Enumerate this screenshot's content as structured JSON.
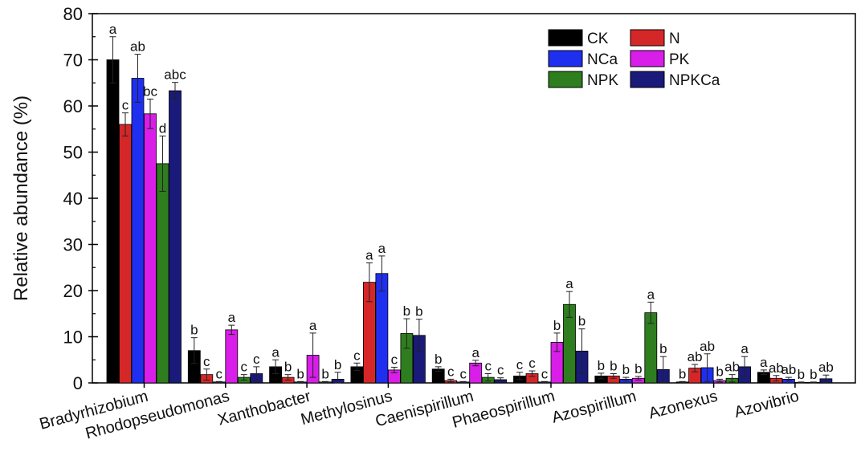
{
  "chart_data": {
    "type": "bar",
    "title": "",
    "xlabel": "",
    "ylabel": "Relative abundance (%)",
    "ylim": [
      0,
      80
    ],
    "yticks": [
      "0",
      "10",
      "20",
      "30",
      "40",
      "50",
      "60",
      "70",
      "80"
    ],
    "grid": false,
    "legend_position": "top-right",
    "categories": [
      "Bradyrhizobium",
      "Rhodopseudomonas",
      "Xanthobacter",
      "Methylosinus",
      "Caenispirillum",
      "Phaeospirillum",
      "Azospirillum",
      "Azonexus",
      "Azovibrio"
    ],
    "series": [
      {
        "name": "CK",
        "color": "#000000",
        "values": [
          70.0,
          7.0,
          3.5,
          3.5,
          3.0,
          1.5,
          1.5,
          0.2,
          2.3
        ],
        "errors": [
          5.0,
          2.8,
          1.5,
          0.8,
          0.5,
          0.8,
          0.6,
          0.1,
          0.5
        ],
        "labels": [
          "a",
          "b",
          "a",
          "c",
          "b",
          "c",
          "b",
          "b",
          "a"
        ]
      },
      {
        "name": "N",
        "color": "#d62728",
        "values": [
          56.0,
          1.8,
          1.2,
          21.8,
          0.5,
          2.0,
          1.5,
          3.2,
          1.0
        ],
        "errors": [
          2.5,
          1.2,
          0.6,
          4.2,
          0.3,
          0.6,
          0.5,
          0.8,
          0.6
        ],
        "labels": [
          "c",
          "c",
          "b",
          "a",
          "c",
          "c",
          "b",
          "ab",
          "ab"
        ]
      },
      {
        "name": "NCa",
        "color": "#1f2ff0",
        "values": [
          66.0,
          0.2,
          0.2,
          23.7,
          0.2,
          0.2,
          0.8,
          3.3,
          0.8
        ],
        "errors": [
          5.2,
          0.1,
          0.1,
          3.8,
          0.1,
          0.1,
          0.4,
          3.0,
          0.4
        ],
        "labels": [
          "ab",
          "c",
          "b",
          "a",
          "c",
          "c",
          "b",
          "ab",
          "ab"
        ]
      },
      {
        "name": "PK",
        "color": "#d81ee8",
        "values": [
          58.3,
          11.5,
          6.0,
          2.8,
          4.3,
          8.8,
          1.0,
          0.5,
          0.1
        ],
        "errors": [
          3.2,
          1.0,
          4.8,
          0.6,
          0.6,
          2.0,
          0.4,
          0.3,
          0.1
        ],
        "labels": [
          "bc",
          "a",
          "a",
          "c",
          "a",
          "b",
          "b",
          "b",
          "b"
        ]
      },
      {
        "name": "NPK",
        "color": "#2e7d1f",
        "values": [
          47.5,
          1.2,
          0.2,
          10.7,
          1.2,
          17.0,
          15.2,
          1.0,
          0.1
        ],
        "errors": [
          6.0,
          0.6,
          0.1,
          3.2,
          0.8,
          2.8,
          2.3,
          0.8,
          0.1
        ],
        "labels": [
          "d",
          "c",
          "b",
          "b",
          "c",
          "a",
          "a",
          "ab",
          "b"
        ]
      },
      {
        "name": "NPKCa",
        "color": "#1a1a7a",
        "values": [
          63.3,
          2.0,
          0.8,
          10.3,
          0.7,
          6.9,
          2.9,
          3.5,
          0.9
        ],
        "errors": [
          1.8,
          1.5,
          1.5,
          3.5,
          0.4,
          4.8,
          2.8,
          2.2,
          0.8
        ],
        "labels": [
          "abc",
          "c",
          "b",
          "b",
          "c",
          "b",
          "b",
          "a",
          "ab"
        ]
      }
    ]
  }
}
